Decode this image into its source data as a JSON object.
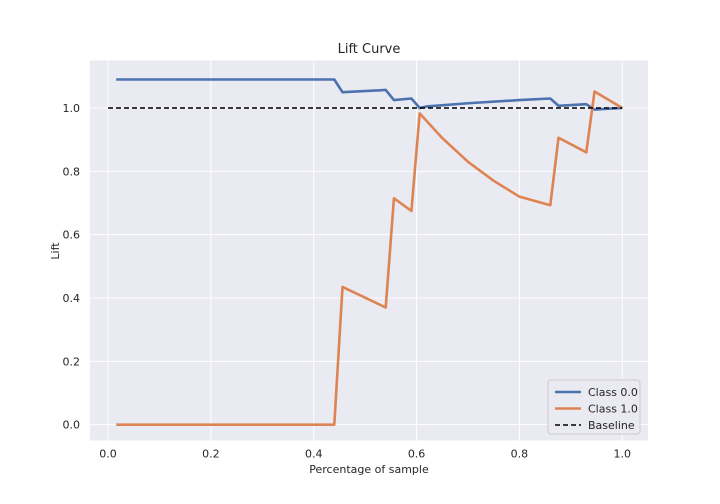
{
  "chart_data": {
    "type": "line",
    "title": "Lift Curve",
    "xlabel": "Percentage of sample",
    "ylabel": "Lift",
    "xlim": [
      -0.035,
      1.05
    ],
    "ylim": [
      -0.05,
      1.15
    ],
    "xticks": [
      0.0,
      0.2,
      0.4,
      0.6,
      0.8,
      1.0
    ],
    "xtick_labels": [
      "0.0",
      "0.2",
      "0.4",
      "0.6",
      "0.8",
      "1.0"
    ],
    "yticks": [
      0.0,
      0.2,
      0.4,
      0.6,
      0.8,
      1.0
    ],
    "ytick_labels": [
      "0.0",
      "0.2",
      "0.4",
      "0.6",
      "0.8",
      "1.0"
    ],
    "grid": true,
    "legend_position": "lower-right",
    "series": [
      {
        "name": "Class 0.0",
        "color": "#4c72b0",
        "style": "solid",
        "x": [
          0.016,
          0.44,
          0.456,
          0.54,
          0.556,
          0.59,
          0.606,
          0.62,
          0.7,
          0.8,
          0.86,
          0.876,
          0.93,
          0.946,
          1.0
        ],
        "y": [
          1.09,
          1.09,
          1.05,
          1.057,
          1.025,
          1.03,
          1.0,
          1.005,
          1.015,
          1.025,
          1.03,
          1.007,
          1.012,
          0.995,
          1.0
        ]
      },
      {
        "name": "Class 1.0",
        "color": "#dd8452",
        "style": "solid",
        "x": [
          0.016,
          0.44,
          0.456,
          0.54,
          0.556,
          0.59,
          0.606,
          0.65,
          0.7,
          0.75,
          0.8,
          0.86,
          0.876,
          0.93,
          0.946,
          1.0
        ],
        "y": [
          0.0,
          0.0,
          0.435,
          0.37,
          0.715,
          0.675,
          0.983,
          0.905,
          0.83,
          0.77,
          0.72,
          0.693,
          0.906,
          0.86,
          1.052,
          1.0
        ]
      },
      {
        "name": "Baseline",
        "color": "#000000",
        "style": "dashed",
        "x": [
          0.0,
          1.0
        ],
        "y": [
          1.0,
          1.0
        ]
      }
    ]
  }
}
